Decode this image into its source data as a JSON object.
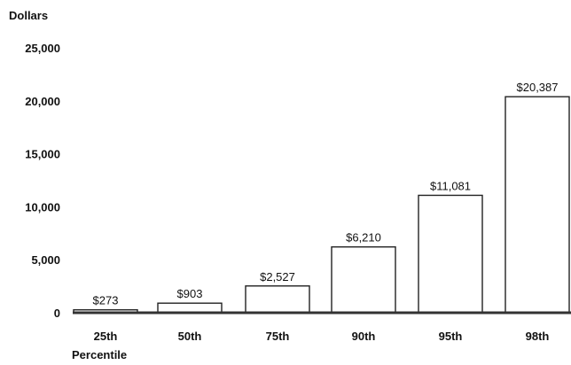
{
  "chart_data": {
    "type": "bar",
    "ylabel": "Dollars",
    "xlabel": "Percentile",
    "categories": [
      "25th",
      "50th",
      "75th",
      "90th",
      "95th",
      "98th"
    ],
    "values": [
      273,
      903,
      2527,
      6210,
      11081,
      20387
    ],
    "data_labels": [
      "$273",
      "$903",
      "$2,527",
      "$6,210",
      "$11,081",
      "$20,387"
    ],
    "yticks": [
      0,
      5000,
      10000,
      15000,
      20000,
      25000
    ],
    "ytick_labels": [
      "0",
      "5,000",
      "10,000",
      "15,000",
      "20,000",
      "25,000"
    ],
    "ylim": [
      0,
      25000
    ],
    "grid": false,
    "legend": "none",
    "colors": {
      "bar_fill": "#ffffff",
      "bar_stroke": "#222222",
      "baseline": "#333333"
    }
  }
}
